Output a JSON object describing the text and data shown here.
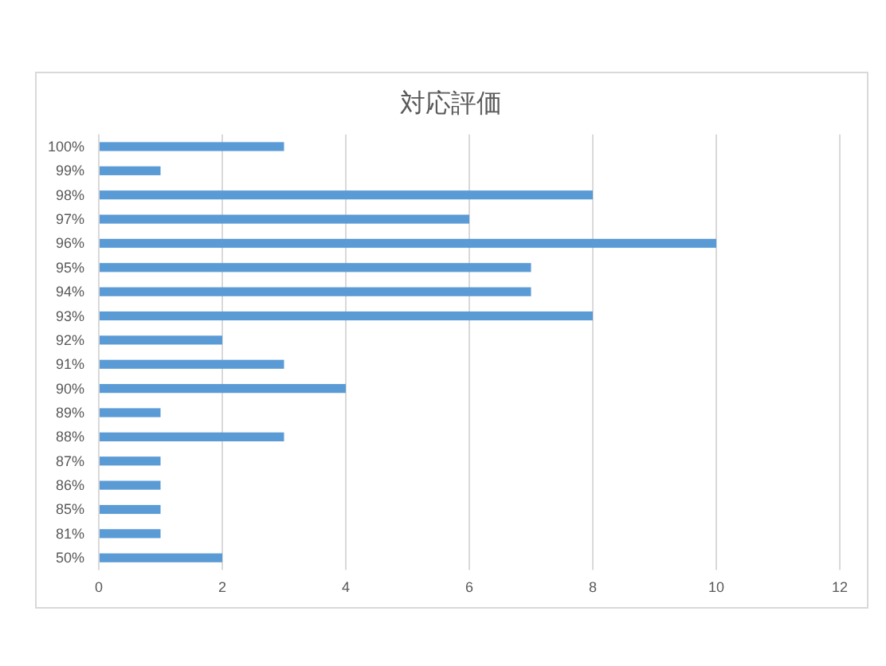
{
  "chart_data": {
    "type": "bar",
    "orientation": "horizontal",
    "title": "対応評価",
    "categories": [
      "100%",
      "99%",
      "98%",
      "97%",
      "96%",
      "95%",
      "94%",
      "93%",
      "92%",
      "91%",
      "90%",
      "89%",
      "88%",
      "87%",
      "86%",
      "85%",
      "81%",
      "50%"
    ],
    "values": [
      3,
      1,
      8,
      6,
      10,
      7,
      7,
      8,
      2,
      3,
      4,
      1,
      3,
      1,
      1,
      1,
      1,
      2
    ],
    "color": "#5b9bd5",
    "xlim": [
      0,
      12
    ],
    "xticks": [
      0,
      2,
      4,
      6,
      8,
      10,
      12
    ],
    "grid": "x"
  }
}
